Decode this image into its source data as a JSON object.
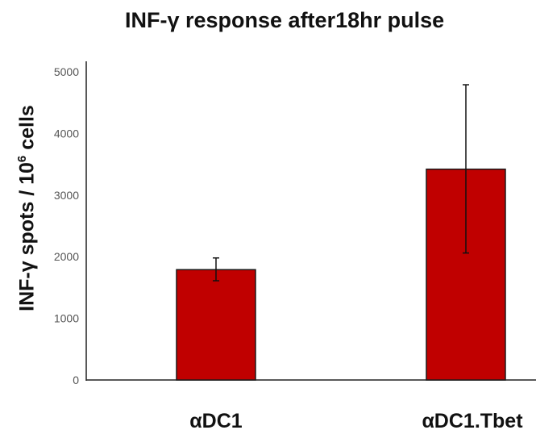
{
  "chart_data": {
    "type": "bar",
    "title": "INF-γ response after18hr pulse",
    "ylabel_main": "INF-γ spots / 10",
    "ylabel_sup": "6",
    "ylabel_tail": " cells",
    "xlabel": "",
    "categories": [
      "αDC1",
      "αDC1.Tbet"
    ],
    "values": [
      1790,
      3420
    ],
    "error_low": [
      1610,
      2060
    ],
    "error_high": [
      1980,
      4790
    ],
    "ylim": [
      0,
      5000
    ],
    "yticks": [
      0,
      1000,
      2000,
      3000,
      4000,
      5000
    ],
    "grid": false,
    "bar_color": "#c00000",
    "bar_edge_color": "#1a1a1a"
  }
}
